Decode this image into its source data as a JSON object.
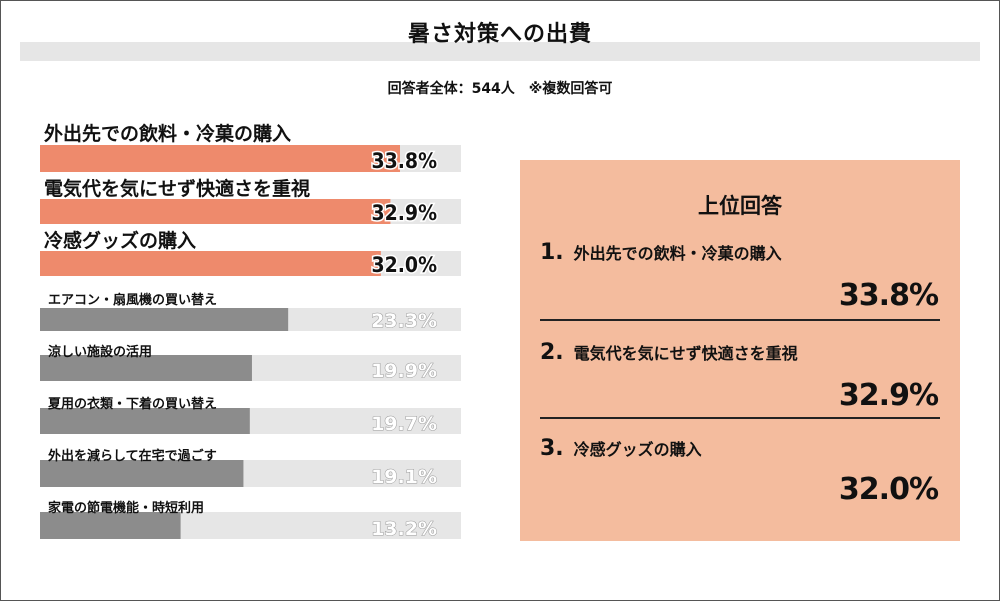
{
  "title": "暑さ対策への出費",
  "subtitle": "回答者全体：544人　※複数回答可",
  "chart_data": {
    "type": "bar",
    "orientation": "horizontal",
    "xlim": [
      0,
      40
    ],
    "highlight_count": 3,
    "colors": {
      "highlight": "#ee8a6c",
      "normal": "#8c8c8c",
      "track": "#e6e6e6"
    },
    "categories": [
      "外出先での飲料・冷菓の購入",
      "電気代を気にせず快適さを重視",
      "冷感グッズの購入",
      "エアコン・扇風機の買い替え",
      "涼しい施設の活用",
      "夏用の衣類・下着の買い替え",
      "外出を減らして在宅で過ごす",
      "家電の節電機能・時短利用"
    ],
    "values": [
      33.8,
      32.9,
      32.0,
      23.3,
      19.9,
      19.7,
      19.1,
      13.2
    ],
    "value_labels": [
      "33.8%",
      "32.9%",
      "32.0%",
      "23.3%",
      "19.9%",
      "19.7%",
      "19.1%",
      "13.2%"
    ]
  },
  "panel": {
    "title": "上位回答",
    "items": [
      {
        "rank": "1.",
        "label": "外出先での飲料・冷菓の購入",
        "value": "33.8%"
      },
      {
        "rank": "2.",
        "label": "電気代を気にせず快適さを重視",
        "value": "32.9%"
      },
      {
        "rank": "3.",
        "label": "冷感グッズの購入",
        "value": "32.0%"
      }
    ]
  }
}
